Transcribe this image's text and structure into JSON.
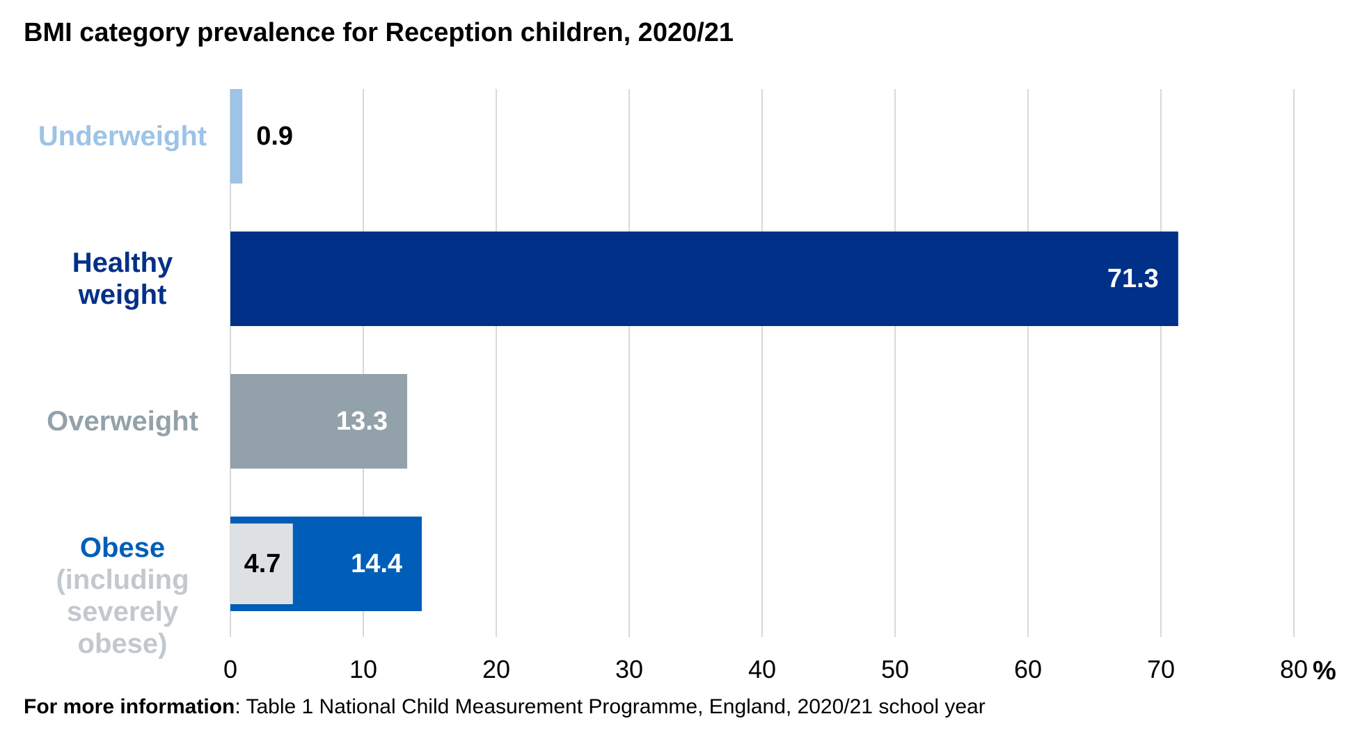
{
  "chart_data": {
    "type": "bar",
    "orientation": "horizontal",
    "title": "BMI category prevalence for Reception children, 2020/21",
    "x_unit": "%",
    "xlim": [
      0,
      80
    ],
    "x_ticks": [
      0,
      10,
      20,
      30,
      40,
      50,
      60,
      70,
      80
    ],
    "x_tick_labels": [
      "0",
      "10",
      "20",
      "30",
      "40",
      "50",
      "60",
      "70",
      "80"
    ],
    "grid": "vertical",
    "categories": [
      {
        "label": [
          "Underweight"
        ],
        "value": 0.9,
        "value_label": "0.9",
        "color": "#9dc3e6",
        "label_color": "#9dc3e6",
        "value_label_color": "#000000"
      },
      {
        "label": [
          "Healthy",
          "weight"
        ],
        "value": 71.3,
        "value_label": "71.3",
        "color": "#003087",
        "label_color": "#003087",
        "value_label_color": "#ffffff"
      },
      {
        "label": [
          "Overweight"
        ],
        "value": 13.3,
        "value_label": "13.3",
        "color": "#93a1aa",
        "label_color": "#93a1aa",
        "value_label_color": "#ffffff"
      },
      {
        "label": [
          "Obese"
        ],
        "value": 14.4,
        "value_label": "14.4",
        "color": "#005eb8",
        "label_color": "#005eb8",
        "value_label_color": "#ffffff",
        "sublabel": [
          "(including",
          "severely",
          "obese)"
        ],
        "sublabel_color": "#c2c8cd",
        "inner": {
          "value": 4.7,
          "value_label": "4.7",
          "color": "#dde1e4",
          "value_label_color": "#000000"
        }
      }
    ]
  },
  "footer": {
    "bold": "For more information",
    "rest": ": Table 1 National Child Measurement Programme, England, 2020/21 school year"
  }
}
